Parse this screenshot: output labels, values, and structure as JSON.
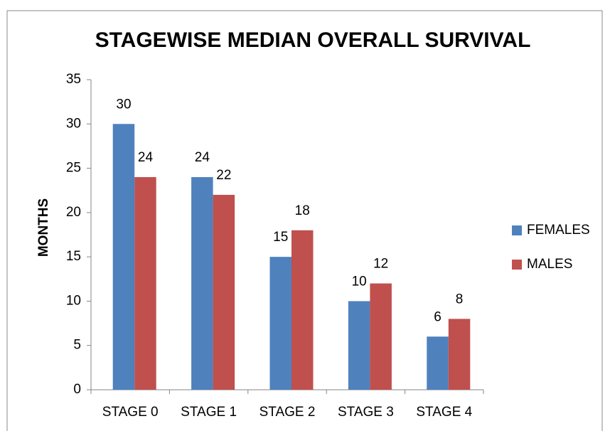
{
  "chart_data": {
    "type": "bar",
    "title": "STAGEWISE MEDIAN OVERALL SURVIVAL",
    "y_label": "MONTHS",
    "categories": [
      "STAGE 0",
      "STAGE 1",
      "STAGE 2",
      "STAGE 3",
      "STAGE 4"
    ],
    "series": [
      {
        "name": "FEMALES",
        "color": "#4f81bd",
        "values": [
          30,
          24,
          15,
          10,
          6
        ]
      },
      {
        "name": "MALES",
        "color": "#c0504d",
        "values": [
          24,
          22,
          18,
          12,
          8
        ]
      }
    ],
    "ylim": [
      0,
      35
    ],
    "yticks": [
      0,
      5,
      10,
      15,
      20,
      25,
      30,
      35
    ],
    "grid": false,
    "legend": "right"
  }
}
